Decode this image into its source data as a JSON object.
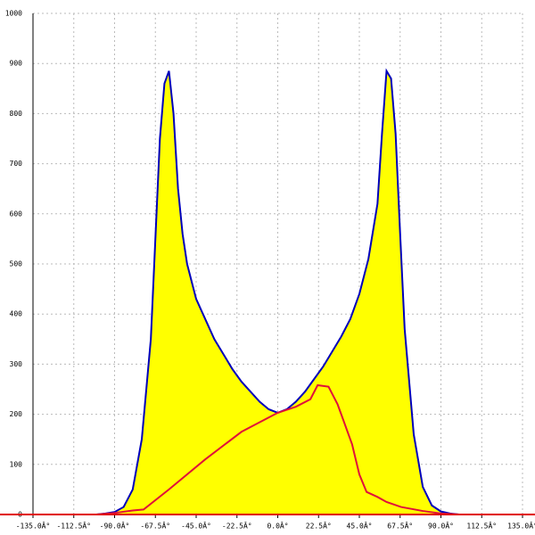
{
  "chart_data": {
    "type": "area",
    "xlim": [
      -135,
      135
    ],
    "xticks": [
      {
        "value": -135,
        "label": "-135.0Â°"
      },
      {
        "value": -112.5,
        "label": "-112.5Â°"
      },
      {
        "value": -90,
        "label": "-90.0Â°"
      },
      {
        "value": -67.5,
        "label": "-67.5Â°"
      },
      {
        "value": -45,
        "label": "-45.0Â°"
      },
      {
        "value": -22.5,
        "label": "-22.5Â°"
      },
      {
        "value": 0,
        "label": "0.0Â°"
      },
      {
        "value": 22.5,
        "label": "22.5Â°"
      },
      {
        "value": 45,
        "label": "45.0Â°"
      },
      {
        "value": 67.5,
        "label": "67.5Â°"
      },
      {
        "value": 90,
        "label": "90.0Â°"
      },
      {
        "value": 112.5,
        "label": "112.5Â°"
      },
      {
        "value": 135,
        "label": "135.0Â°"
      }
    ],
    "ylim": [
      0,
      1000
    ],
    "yticks": [
      0,
      100,
      200,
      300,
      400,
      500,
      600,
      700,
      800,
      900,
      1000
    ],
    "grid": true,
    "series": [
      {
        "color": "#0000bb",
        "fill": "#ffff00",
        "x": [
          -100,
          -95,
          -90,
          -85,
          -80,
          -75,
          -70,
          -67.5,
          -65,
          -62.5,
          -60,
          -57.5,
          -55,
          -52.5,
          -50,
          -45,
          -40,
          -35,
          -30,
          -25,
          -20,
          -15,
          -10,
          -5,
          0,
          5,
          10,
          15,
          20,
          25,
          30,
          35,
          40,
          45,
          50,
          55,
          57.5,
          60,
          62.5,
          65,
          67.5,
          70,
          75,
          80,
          85,
          90,
          95,
          100
        ],
        "values": [
          0,
          2,
          5,
          15,
          50,
          150,
          350,
          550,
          750,
          860,
          885,
          800,
          650,
          560,
          500,
          430,
          390,
          350,
          320,
          290,
          265,
          245,
          225,
          210,
          203,
          210,
          225,
          245,
          270,
          295,
          325,
          355,
          390,
          440,
          510,
          620,
          760,
          885,
          870,
          760,
          560,
          370,
          160,
          55,
          18,
          6,
          2,
          0
        ]
      },
      {
        "color": "#e0103a",
        "x": [
          -100,
          -90,
          -80,
          -74,
          -60,
          -40,
          -20,
          0,
          10,
          18,
          22,
          28,
          33,
          38,
          41,
          45,
          49,
          55,
          60,
          68,
          80,
          90,
          100
        ],
        "values": [
          0,
          3,
          8,
          10,
          50,
          110,
          165,
          203,
          215,
          230,
          258,
          255,
          220,
          170,
          140,
          80,
          45,
          35,
          25,
          15,
          7,
          2,
          0
        ]
      }
    ]
  }
}
